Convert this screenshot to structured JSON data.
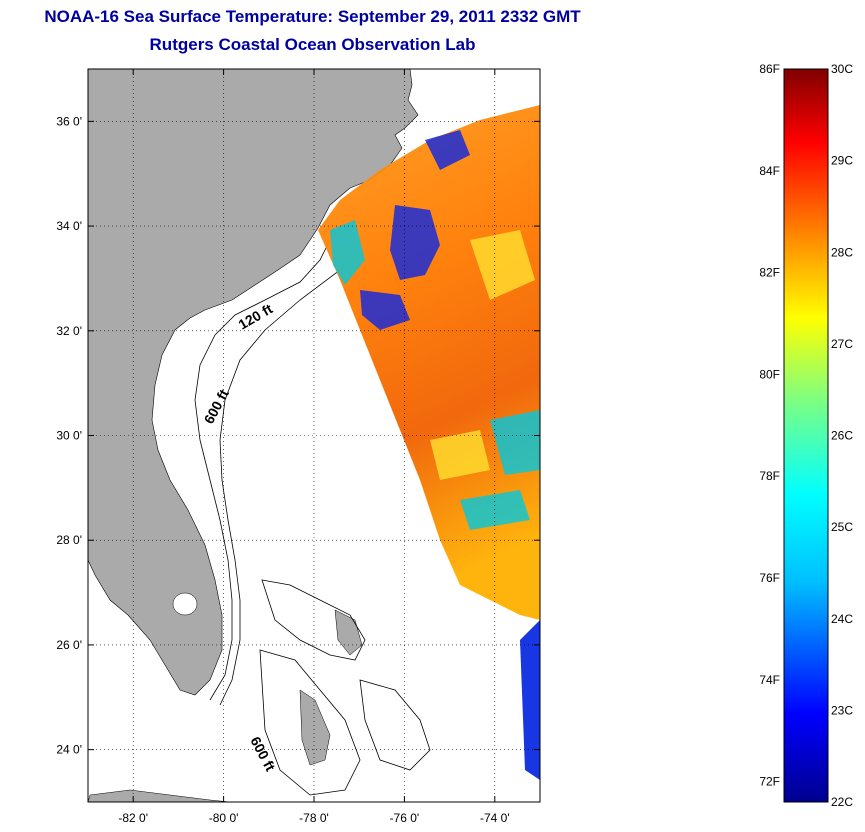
{
  "title": {
    "line1": "NOAA-16 Sea Surface Temperature:  September 29, 2011 2332 GMT",
    "line2": "Rutgers Coastal Ocean Observation Lab"
  },
  "map": {
    "lon_range": [
      -83,
      -73
    ],
    "lat_range": [
      23,
      37
    ],
    "x_ticks": [
      {
        "value": -82,
        "label": "-82 0'"
      },
      {
        "value": -80,
        "label": "-80 0'"
      },
      {
        "value": -78,
        "label": "-78 0'"
      },
      {
        "value": -76,
        "label": "-76 0'"
      },
      {
        "value": -74,
        "label": "-74 0'"
      }
    ],
    "y_ticks": [
      {
        "value": 36,
        "label": "36 0'"
      },
      {
        "value": 34,
        "label": "34 0'"
      },
      {
        "value": 32,
        "label": "32 0'"
      },
      {
        "value": 30,
        "label": "30 0'"
      },
      {
        "value": 28,
        "label": "28 0'"
      },
      {
        "value": 26,
        "label": "26 0'"
      },
      {
        "value": 24,
        "label": "24 0'"
      }
    ],
    "grid": true,
    "land_color": "#aaaaaa",
    "contour_labels": {
      "c120_upper": "120 ft",
      "c600_upper": "600 ft",
      "c600_lower": "600 ft"
    }
  },
  "colorbar": {
    "fahrenheit_labels": [
      "86F",
      "84F",
      "82F",
      "80F",
      "78F",
      "76F",
      "74F",
      "72F"
    ],
    "celsius_labels": [
      "30C",
      "29C",
      "28C",
      "27C",
      "26C",
      "25C",
      "24C",
      "23C",
      "22C"
    ],
    "celsius_range": [
      22,
      30
    ],
    "colormap": [
      "#00008f",
      "#0000ff",
      "#00bfff",
      "#00ffff",
      "#7fff7f",
      "#ffff00",
      "#ff8000",
      "#ff0000",
      "#800000"
    ]
  }
}
